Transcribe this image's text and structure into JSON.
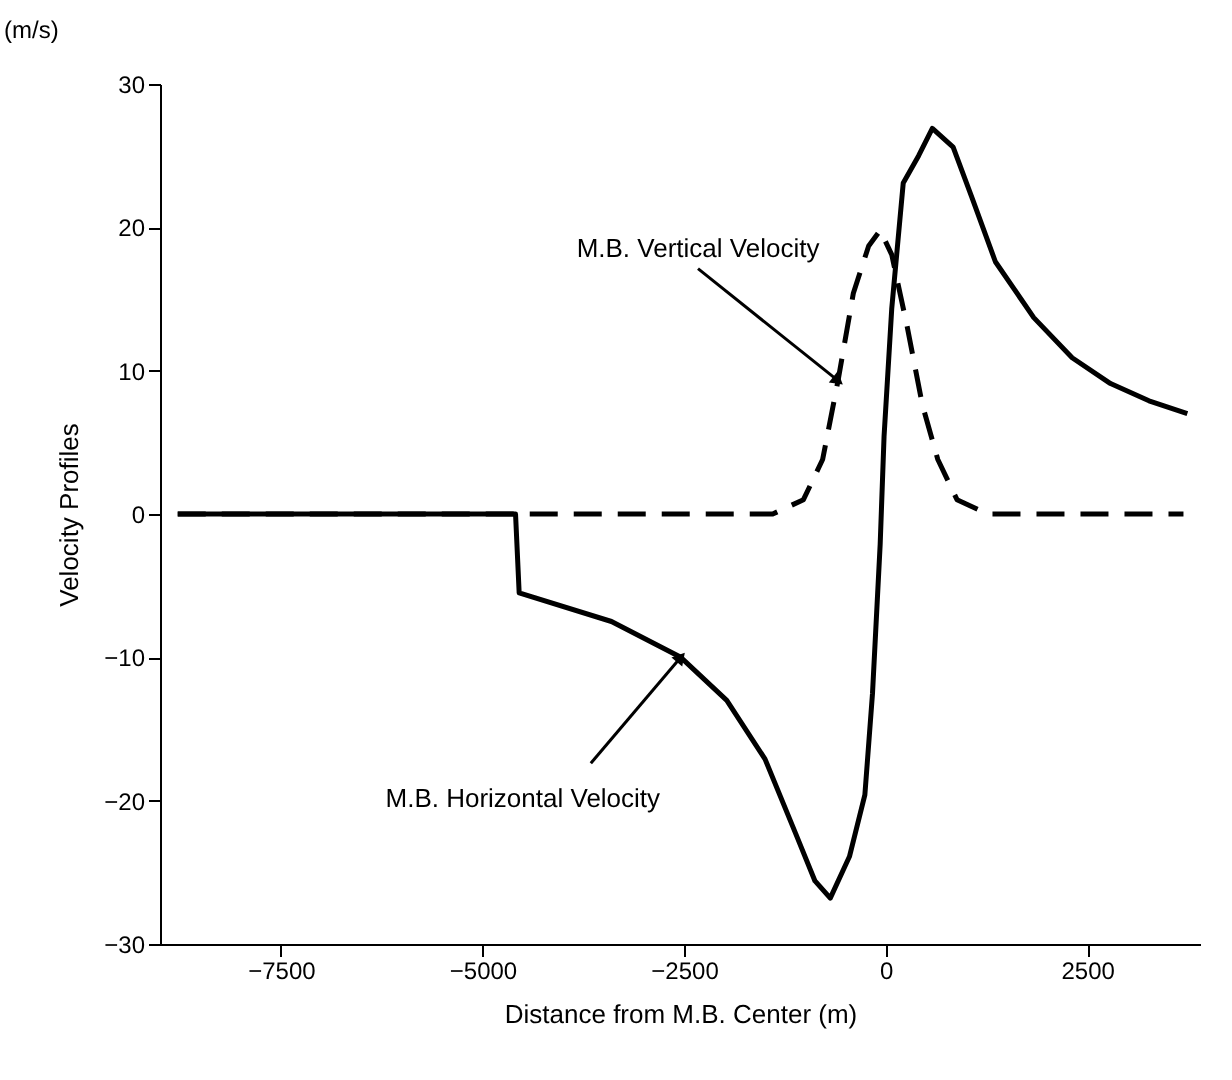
{
  "chart_data": {
    "type": "line",
    "xlabel": "Distance from M.B. Center (m)",
    "ylabel": "Velocity Profiles",
    "xlim": [
      -9000,
      3900
    ],
    "xticks": [
      -7500,
      -5000,
      -2500,
      0,
      2500
    ],
    "ylim": [
      -30,
      30
    ],
    "yticks": [
      -30,
      -20,
      -10,
      0,
      10,
      20,
      30
    ],
    "grid": false,
    "marker": "none",
    "series": [
      {
        "color": "#000000",
        "line_style": "solid",
        "x": [
          -8780,
          -4590,
          -4545,
          -3400,
          -2540,
          -1970,
          -1495,
          -1115,
          -876,
          -686,
          -448,
          -257,
          -162,
          -67,
          -19,
          76,
          219,
          410,
          580,
          838,
          1076,
          1362,
          1838,
          2314,
          2790,
          3267,
          3743
        ],
        "values": [
          0,
          0,
          -5.5,
          -7.5,
          -10,
          -13,
          -17.1,
          -22.3,
          -25.6,
          -26.8,
          -23.9,
          -19.6,
          -12.5,
          -2.1,
          5.4,
          14.3,
          23.1,
          25,
          26.9,
          25.6,
          22,
          17.6,
          13.7,
          10.9,
          9.1,
          7.9,
          7
        ]
      },
      {
        "color": "#000000",
        "line_style": "dashed",
        "x": [
          -8780,
          -1400,
          -1019,
          -781,
          -590,
          -400,
          -210,
          -67,
          76,
          267,
          457,
          648,
          886,
          1267,
          3695
        ],
        "values": [
          0,
          0,
          1,
          3.8,
          9.3,
          15.4,
          18.7,
          19.8,
          18.1,
          13.1,
          7.6,
          3.8,
          1,
          0,
          0
        ]
      }
    ],
    "annotations": [
      {
        "text": "M.B. Vertical Velocity",
        "x": -590,
        "y": 9.3
      },
      {
        "text": "M.B. Horizontal Velocity",
        "x": -2540,
        "y": -10
      },
      "(m/s)"
    ]
  }
}
